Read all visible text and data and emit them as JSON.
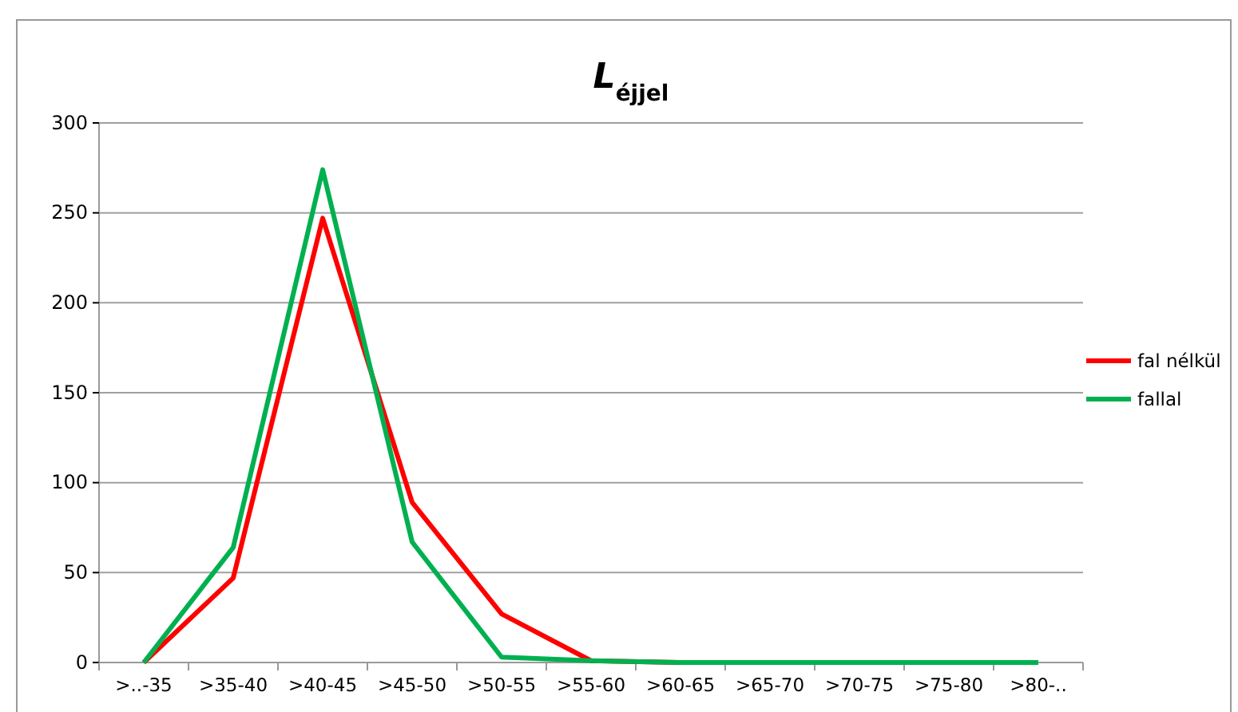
{
  "chart_data": {
    "type": "line",
    "title": "L$_{éjjel}$",
    "categories": [
      ">..-35",
      ">35-40",
      ">40-45",
      ">45-50",
      ">50-55",
      ">55-60",
      ">60-65",
      ">65-70",
      ">70-75",
      ">75-80",
      ">80-.."
    ],
    "series": [
      {
        "name": "fal nélkül",
        "color": "#ff0000",
        "values": [
          0,
          47,
          247,
          89,
          27,
          1,
          0,
          null,
          null,
          null,
          null
        ]
      },
      {
        "name": "fallal",
        "color": "#00b050",
        "values": [
          0,
          64,
          274,
          67,
          3,
          1,
          0,
          0,
          0,
          0,
          0
        ]
      }
    ],
    "ylim": [
      0,
      300
    ],
    "yticks": [
      0,
      50,
      100,
      150,
      200,
      250,
      300
    ],
    "grid": "y",
    "legend": "right",
    "marker": "none",
    "line_style": "solid"
  }
}
